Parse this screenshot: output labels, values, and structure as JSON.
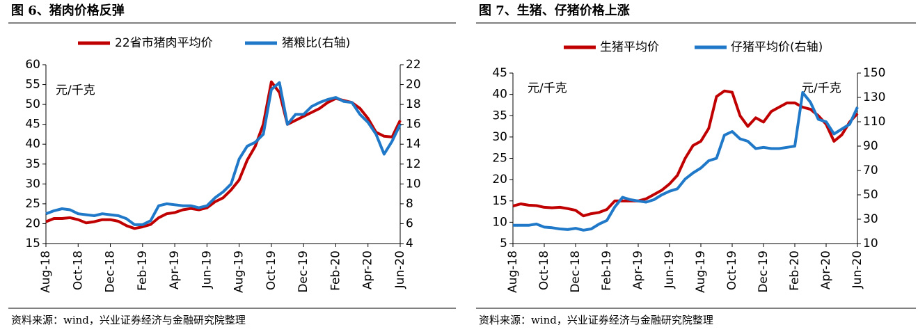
{
  "chart_data": [
    {
      "type": "line",
      "title": "图 6、猪肉价格反弹",
      "source": "资料来源：wind，兴业证券经济与金融研究院整理",
      "notes": [
        "元/千克"
      ],
      "x": [
        0,
        0.5,
        1,
        1.5,
        2,
        2.5,
        3,
        3.5,
        4,
        4.5,
        5,
        5.5,
        6,
        6.5,
        7,
        7.5,
        8,
        8.5,
        9,
        9.5,
        10,
        10.5,
        11,
        11.5,
        12,
        12.5,
        13,
        13.5,
        14,
        14.5,
        15,
        15.5,
        16,
        16.5,
        17,
        17.5,
        18,
        18.5,
        19,
        19.5,
        20,
        20.5,
        21,
        21.5,
        22
      ],
      "xlim": [
        0,
        22
      ],
      "xticks": [
        {
          "value": 0,
          "label": "Aug-18"
        },
        {
          "value": 2,
          "label": "Oct-18"
        },
        {
          "value": 4,
          "label": "Dec-18"
        },
        {
          "value": 6,
          "label": "Feb-19"
        },
        {
          "value": 8,
          "label": "Apr-19"
        },
        {
          "value": 10,
          "label": "Jun-19"
        },
        {
          "value": 12,
          "label": "Aug-19"
        },
        {
          "value": 14,
          "label": "Oct-19"
        },
        {
          "value": 16,
          "label": "Dec-19"
        },
        {
          "value": 18,
          "label": "Feb-20"
        },
        {
          "value": 20,
          "label": "Apr-20"
        },
        {
          "value": 22,
          "label": "Jun-20"
        }
      ],
      "ylim": [
        15,
        60
      ],
      "yticks": [
        15,
        20,
        25,
        30,
        35,
        40,
        45,
        50,
        55,
        60
      ],
      "y2lim": [
        4,
        22
      ],
      "y2ticks": [
        4,
        6,
        8,
        10,
        12,
        14,
        16,
        18,
        20,
        22
      ],
      "series": [
        {
          "name": "22省市猪肉平均价",
          "color": "#c00000",
          "axis": "y",
          "values": [
            20.5,
            21.3,
            21.3,
            21.5,
            21.0,
            20.2,
            20.5,
            21.0,
            21.0,
            20.6,
            19.5,
            18.8,
            19.2,
            19.8,
            21.5,
            22.5,
            22.8,
            23.5,
            23.8,
            23.5,
            24.0,
            25.5,
            26.5,
            28.5,
            31.0,
            36.0,
            39.5,
            45.0,
            55.7,
            53.0,
            45.0,
            46.0,
            47.0,
            48.0,
            49.0,
            50.5,
            51.5,
            51.0,
            50.5,
            49.0,
            46.5,
            43.0,
            42.0,
            41.8,
            46.0
          ]
        },
        {
          "name": "猪粮比(右轴)",
          "color": "#1f78c8",
          "axis": "y2",
          "values": [
            7.0,
            7.3,
            7.5,
            7.4,
            7.0,
            6.9,
            6.8,
            7.0,
            6.9,
            6.8,
            6.5,
            5.9,
            5.9,
            6.3,
            7.8,
            8.0,
            7.9,
            7.8,
            7.8,
            7.6,
            7.8,
            8.6,
            9.2,
            10.0,
            12.5,
            13.8,
            14.2,
            15.0,
            19.5,
            20.2,
            16.0,
            17.0,
            17.0,
            17.8,
            18.2,
            18.5,
            18.7,
            18.3,
            18.2,
            17.0,
            16.2,
            15.0,
            13.0,
            14.3,
            16.0
          ]
        }
      ]
    },
    {
      "type": "line",
      "title": "图 7、生猪、仔猪价格上涨",
      "source": "资料来源：wind，兴业证券经济与金融研究院整理",
      "notes": [
        "元/千克",
        "元/千克"
      ],
      "x": [
        0,
        0.5,
        1,
        1.5,
        2,
        2.5,
        3,
        3.5,
        4,
        4.5,
        5,
        5.5,
        6,
        6.5,
        7,
        7.5,
        8,
        8.5,
        9,
        9.5,
        10,
        10.5,
        11,
        11.5,
        12,
        12.5,
        13,
        13.5,
        14,
        14.5,
        15,
        15.5,
        16,
        16.5,
        17,
        17.5,
        18,
        18.5,
        19,
        19.5,
        20,
        20.5,
        21,
        21.5,
        22
      ],
      "xlim": [
        0,
        22
      ],
      "xticks": [
        {
          "value": 0,
          "label": "Aug-18"
        },
        {
          "value": 2,
          "label": "Oct-18"
        },
        {
          "value": 4,
          "label": "Dec-18"
        },
        {
          "value": 6,
          "label": "Feb-19"
        },
        {
          "value": 8,
          "label": "Apr-19"
        },
        {
          "value": 10,
          "label": "Jun-19"
        },
        {
          "value": 12,
          "label": "Aug-19"
        },
        {
          "value": 14,
          "label": "Oct-19"
        },
        {
          "value": 16,
          "label": "Dec-19"
        },
        {
          "value": 18,
          "label": "Feb-20"
        },
        {
          "value": 20,
          "label": "Apr-20"
        },
        {
          "value": 22,
          "label": "Jun-20"
        }
      ],
      "ylim": [
        5,
        45
      ],
      "yticks": [
        5,
        10,
        15,
        20,
        25,
        30,
        35,
        40,
        45
      ],
      "y2lim": [
        10,
        150
      ],
      "y2ticks": [
        10,
        30,
        50,
        70,
        90,
        110,
        130,
        150
      ],
      "series": [
        {
          "name": "生猪平均价",
          "color": "#c00000",
          "axis": "y",
          "values": [
            13.8,
            14.3,
            14.0,
            13.9,
            13.5,
            13.4,
            13.5,
            13.2,
            12.8,
            11.5,
            12.0,
            12.3,
            13.0,
            15.0,
            15.0,
            15.0,
            15.0,
            15.5,
            16.5,
            17.5,
            19.0,
            21.0,
            25.0,
            28.0,
            29.0,
            32.0,
            39.5,
            40.8,
            40.5,
            35.0,
            32.5,
            34.5,
            33.5,
            36.0,
            37.0,
            38.0,
            38.0,
            37.0,
            36.5,
            35.0,
            33.0,
            29.0,
            30.5,
            33.5,
            35.5
          ]
        },
        {
          "name": "仔猪平均价(右轴)",
          "color": "#1f78c8",
          "axis": "y2",
          "values": [
            25,
            25,
            25,
            26,
            23.5,
            23,
            22,
            21.5,
            22.5,
            21,
            22,
            26,
            29,
            40,
            48,
            46,
            45,
            44,
            46,
            50,
            53,
            55,
            63,
            68,
            72,
            78,
            80,
            99,
            102,
            96,
            94,
            88,
            89,
            88,
            88,
            89,
            90,
            134,
            126,
            112,
            110,
            100,
            104,
            108,
            122
          ]
        }
      ]
    }
  ]
}
